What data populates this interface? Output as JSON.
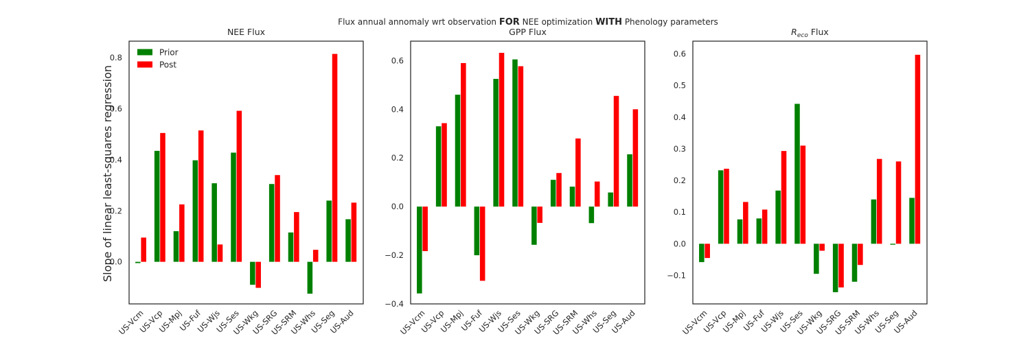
{
  "figure": {
    "suptitle_parts": [
      "Flux annual annomaly wrt observation ",
      "FOR",
      " NEE optimization ",
      "WITH",
      " Phenology parameters"
    ],
    "ylabel": "Slope of linear least-squares regression",
    "colors": {
      "prior": "#008000",
      "post": "#ff0000"
    },
    "legend": {
      "entries": [
        "Prior",
        "Post"
      ],
      "placement": "upper-left of first panel"
    }
  },
  "chart_data": [
    {
      "type": "bar",
      "title": "NEE Flux",
      "title_parts": null,
      "categories": [
        "US-Vcm",
        "US-Vcp",
        "US-Mpj",
        "US-Fuf",
        "US-Wjs",
        "US-Ses",
        "US-Wkg",
        "US-SRG",
        "US-SRM",
        "US-Whs",
        "US-Seg",
        "US-Aud"
      ],
      "series": [
        {
          "name": "Prior",
          "values": [
            -0.005,
            0.435,
            0.12,
            0.398,
            0.308,
            0.428,
            -0.09,
            0.305,
            0.115,
            -0.125,
            0.24,
            0.167
          ]
        },
        {
          "name": "Post",
          "values": [
            0.095,
            0.505,
            0.225,
            0.515,
            0.068,
            0.592,
            -0.102,
            0.34,
            0.195,
            0.047,
            0.815,
            0.232
          ]
        }
      ],
      "ylim": [
        -0.165,
        0.865
      ],
      "yticks": [
        0.0,
        0.2,
        0.4,
        0.6,
        0.8
      ],
      "ytick_labels": [
        "0.0",
        "0.2",
        "0.4",
        "0.6",
        "0.8"
      ],
      "grid": false
    },
    {
      "type": "bar",
      "title": "GPP Flux",
      "title_parts": null,
      "categories": [
        "US-Vcm",
        "US-Vcp",
        "US-Mpj",
        "US-Fuf",
        "US-Wjs",
        "US-Ses",
        "US-Wkg",
        "US-SRG",
        "US-SRM",
        "US-Whs",
        "US-Seg",
        "US-Aud"
      ],
      "series": [
        {
          "name": "Prior",
          "values": [
            -0.357,
            0.33,
            0.46,
            -0.2,
            0.525,
            0.605,
            -0.157,
            0.11,
            0.082,
            -0.068,
            0.058,
            0.215
          ]
        },
        {
          "name": "Post",
          "values": [
            -0.183,
            0.343,
            0.59,
            -0.305,
            0.632,
            0.577,
            -0.067,
            0.138,
            0.28,
            0.103,
            0.455,
            0.4
          ]
        }
      ],
      "ylim": [
        -0.4,
        0.68
      ],
      "yticks": [
        -0.4,
        -0.2,
        0.0,
        0.2,
        0.4,
        0.6
      ],
      "ytick_labels": [
        "−0.4",
        "−0.2",
        "0.0",
        "0.2",
        "0.4",
        "0.6"
      ],
      "grid": false
    },
    {
      "type": "bar",
      "title": "",
      "title_parts": {
        "base": "R",
        "sub": "eco",
        "rest": " Flux"
      },
      "categories": [
        "US-Vcm",
        "US-Vcp",
        "US-Mpj",
        "US-Fuf",
        "US-Wjs",
        "US-Ses",
        "US-Wkg",
        "US-SRG",
        "US-SRM",
        "US-Whs",
        "US-Seg",
        "US-Aud"
      ],
      "series": [
        {
          "name": "Prior",
          "values": [
            -0.058,
            0.232,
            0.077,
            0.08,
            0.168,
            0.442,
            -0.095,
            -0.153,
            -0.12,
            0.14,
            -0.003,
            0.145
          ]
        },
        {
          "name": "Post",
          "values": [
            -0.045,
            0.237,
            0.132,
            0.108,
            0.293,
            0.31,
            -0.022,
            -0.138,
            -0.067,
            0.268,
            0.26,
            0.597
          ]
        }
      ],
      "ylim": [
        -0.19,
        0.64
      ],
      "yticks": [
        -0.1,
        0.0,
        0.1,
        0.2,
        0.3,
        0.4,
        0.5,
        0.6
      ],
      "ytick_labels": [
        "−0.1",
        "0.0",
        "0.1",
        "0.2",
        "0.3",
        "0.4",
        "0.5",
        "0.6"
      ],
      "grid": false
    }
  ]
}
